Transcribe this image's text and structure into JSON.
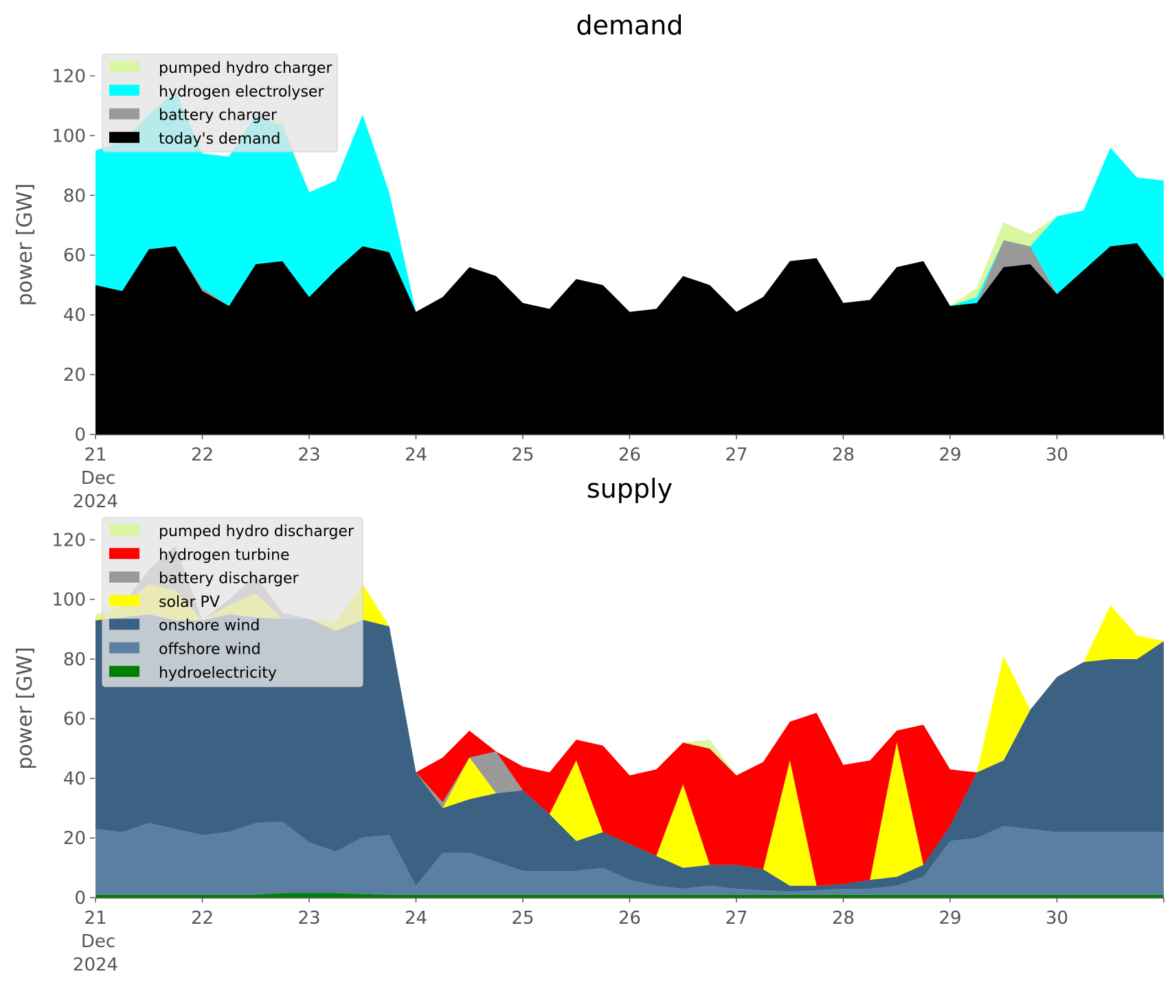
{
  "chart_data": [
    {
      "type": "area",
      "stacked": true,
      "title": "demand",
      "xlabel": "",
      "ylabel": "power [GW]",
      "ylim": [
        0,
        127
      ],
      "xlim": [
        21,
        31
      ],
      "x_ticks": [
        "21",
        "22",
        "23",
        "24",
        "25",
        "26",
        "27",
        "28",
        "29",
        "30"
      ],
      "x_tick_values": [
        21,
        22,
        23,
        24,
        25,
        26,
        27,
        28,
        29,
        30
      ],
      "date_sublabel": [
        "Dec",
        "2024"
      ],
      "y_ticks": [
        0,
        20,
        40,
        60,
        80,
        100,
        120
      ],
      "grid": false,
      "legend_position": "top-left",
      "legend_order": [
        "pumped hydro charger",
        "hydrogen electrolyser",
        "battery charger",
        "today's demand"
      ],
      "x": [
        21.0,
        21.25,
        21.5,
        21.75,
        22.0,
        22.25,
        22.5,
        22.75,
        23.0,
        23.25,
        23.5,
        23.75,
        24.0,
        24.25,
        24.5,
        24.75,
        25.0,
        25.25,
        25.5,
        25.75,
        26.0,
        26.25,
        26.5,
        26.75,
        27.0,
        27.25,
        27.5,
        27.75,
        28.0,
        28.25,
        28.5,
        28.75,
        29.0,
        29.25,
        29.5,
        29.75,
        30.0,
        30.25,
        30.5,
        30.75,
        31.0
      ],
      "series": [
        {
          "name": "today's demand",
          "color": "#000000",
          "values": [
            50,
            48,
            62,
            63,
            48,
            43,
            57,
            58,
            46,
            55,
            63,
            61,
            41,
            46,
            56,
            53,
            44,
            42,
            52,
            50,
            41,
            42,
            53,
            50,
            41,
            46,
            58,
            59,
            44,
            45,
            56,
            58,
            43,
            44,
            56,
            57,
            47,
            55,
            63,
            64,
            52
          ]
        },
        {
          "name": "battery charger",
          "color": "#999999",
          "values": [
            0,
            0,
            0,
            0,
            1,
            0,
            0,
            0,
            0,
            0,
            0,
            0,
            0,
            0,
            0,
            0,
            0,
            0,
            0,
            0,
            0,
            0,
            0,
            0,
            0,
            0,
            0,
            0,
            0,
            0,
            0,
            0,
            0,
            0,
            9,
            6,
            0,
            0,
            0,
            0,
            0
          ]
        },
        {
          "name": "hydrogen electrolyser",
          "color": "#00ffff",
          "values": [
            45,
            50,
            45,
            52,
            45,
            50,
            50,
            45,
            35,
            30,
            44,
            20,
            0,
            0,
            0,
            0,
            0,
            0,
            0,
            0,
            0,
            0,
            0,
            0,
            0,
            0,
            0,
            0,
            0,
            0,
            0,
            0,
            0,
            2,
            0,
            0,
            26,
            20,
            33,
            22,
            33
          ]
        },
        {
          "name": "pumped hydro charger",
          "color": "#d9f7a1",
          "values": [
            0,
            0,
            0,
            0,
            0,
            0,
            0,
            2,
            0,
            0,
            0,
            0,
            0,
            0,
            0,
            0,
            0,
            0,
            0,
            0,
            0,
            0,
            0,
            0,
            0,
            0,
            0,
            0,
            0,
            0,
            0,
            0,
            0,
            3,
            6,
            4,
            0,
            0,
            0,
            0,
            0
          ]
        }
      ]
    },
    {
      "type": "area",
      "stacked": true,
      "title": "supply",
      "xlabel": "",
      "ylabel": "power [GW]",
      "ylim": [
        0,
        127
      ],
      "xlim": [
        21,
        31
      ],
      "x_ticks": [
        "21",
        "22",
        "23",
        "24",
        "25",
        "26",
        "27",
        "28",
        "29",
        "30"
      ],
      "x_tick_values": [
        21,
        22,
        23,
        24,
        25,
        26,
        27,
        28,
        29,
        30
      ],
      "date_sublabel": [
        "Dec",
        "2024"
      ],
      "y_ticks": [
        0,
        20,
        40,
        60,
        80,
        100,
        120
      ],
      "grid": false,
      "legend_position": "top-left",
      "legend_order": [
        "pumped hydro discharger",
        "hydrogen turbine",
        "battery discharger",
        "solar PV",
        "onshore wind",
        "offshore wind",
        "hydroelectricity"
      ],
      "x": [
        21.0,
        21.25,
        21.5,
        21.75,
        22.0,
        22.25,
        22.5,
        22.75,
        23.0,
        23.25,
        23.5,
        23.75,
        24.0,
        24.25,
        24.5,
        24.75,
        25.0,
        25.25,
        25.5,
        25.75,
        26.0,
        26.25,
        26.5,
        26.75,
        27.0,
        27.25,
        27.5,
        27.75,
        28.0,
        28.25,
        28.5,
        28.75,
        29.0,
        29.25,
        29.5,
        29.75,
        30.0,
        30.25,
        30.5,
        30.75,
        31.0
      ],
      "series": [
        {
          "name": "hydroelectricity",
          "color": "#008000",
          "values": [
            1,
            1,
            1,
            1,
            1,
            1,
            1,
            1.5,
            1.5,
            1.5,
            1.2,
            1,
            1,
            1,
            1,
            1,
            1,
            1,
            1,
            1,
            1,
            1,
            1,
            1,
            1,
            1,
            1,
            1,
            1,
            1,
            1,
            1,
            1,
            1,
            1,
            1,
            1,
            1,
            1,
            1,
            1
          ]
        },
        {
          "name": "offshore wind",
          "color": "#5b7fa3",
          "values": [
            22,
            21,
            24,
            22,
            20,
            21,
            24,
            24,
            17,
            14,
            19,
            20,
            3,
            14,
            14,
            11,
            8,
            8,
            8,
            9,
            5,
            3,
            2,
            3,
            2,
            1.5,
            1,
            1.5,
            2,
            2,
            3,
            6,
            18,
            19,
            23,
            22,
            21,
            21,
            21,
            21,
            21
          ]
        },
        {
          "name": "onshore wind",
          "color": "#3b6183",
          "values": [
            70,
            72,
            70,
            70,
            72,
            73,
            69,
            68,
            75,
            74,
            73,
            70,
            38,
            15,
            18,
            23,
            27,
            19,
            10,
            12,
            12,
            10,
            7,
            7,
            8,
            7,
            2,
            1.5,
            1.5,
            3,
            3,
            4,
            5,
            22,
            22,
            40,
            52,
            57,
            58,
            58,
            64
          ]
        },
        {
          "name": "solar PV",
          "color": "#ffff00",
          "values": [
            0,
            4,
            10,
            10,
            0,
            3,
            8,
            0,
            0,
            3,
            12,
            0,
            0,
            0,
            14,
            0,
            0,
            0,
            27,
            0,
            0,
            0,
            28,
            0,
            0,
            0,
            42,
            0,
            0,
            0,
            45,
            0,
            0,
            0,
            35,
            0,
            0,
            0,
            18,
            8,
            0
          ]
        },
        {
          "name": "battery discharger",
          "color": "#999999",
          "values": [
            0,
            0,
            5,
            15,
            0,
            2,
            6,
            2,
            0,
            0,
            0,
            0,
            0,
            2,
            0,
            14,
            0,
            0,
            0,
            0,
            0,
            0,
            0,
            0,
            0,
            0,
            0,
            0,
            0,
            0,
            0,
            0,
            0,
            0,
            0,
            0,
            0,
            0,
            0,
            0,
            0
          ]
        },
        {
          "name": "hydrogen turbine",
          "color": "#ff0000",
          "values": [
            0,
            0,
            0,
            0,
            0,
            0,
            0,
            0,
            0,
            0,
            0,
            0,
            0,
            15,
            9,
            0,
            8,
            14,
            7,
            29,
            23,
            29,
            14,
            39,
            30,
            36,
            13,
            58,
            40,
            40,
            4,
            47,
            19,
            0,
            0,
            0,
            0,
            0,
            0,
            0,
            0
          ]
        },
        {
          "name": "pumped hydro discharger",
          "color": "#d9f7a1",
          "values": [
            2,
            0,
            0,
            0,
            0,
            0,
            0,
            0,
            0,
            0,
            0,
            0,
            0,
            0,
            0,
            0,
            0,
            0,
            0,
            0,
            0,
            0,
            0,
            3,
            0,
            0,
            0,
            0,
            0,
            0,
            0,
            0,
            0,
            0,
            0,
            0,
            0,
            0,
            0,
            0,
            0
          ]
        }
      ]
    }
  ]
}
